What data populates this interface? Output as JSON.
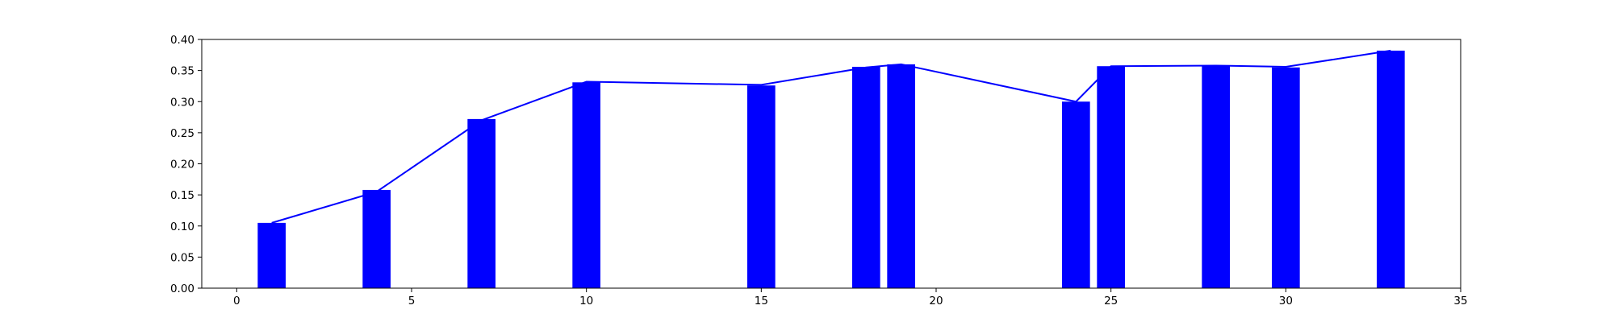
{
  "chart_data": {
    "type": "bar",
    "title": "",
    "xlabel": "",
    "ylabel": "",
    "xlim": [
      -1,
      35
    ],
    "ylim": [
      0,
      0.4
    ],
    "grid": false,
    "x_ticks": [
      0,
      5,
      10,
      15,
      20,
      25,
      30,
      35
    ],
    "x_tick_labels": [
      "0",
      "5",
      "10",
      "15",
      "20",
      "25",
      "30",
      "35"
    ],
    "y_ticks": [
      0,
      0.05,
      0.1,
      0.15,
      0.2,
      0.25,
      0.3,
      0.35,
      0.4
    ],
    "y_tick_labels": [
      "0.00",
      "0.05",
      "0.10",
      "0.15",
      "0.20",
      "0.25",
      "0.30",
      "0.35",
      "0.40"
    ],
    "bar_width": 0.8,
    "bar_color": "#0000ff",
    "line_color": "#0000ff",
    "x": [
      1,
      4,
      7,
      10,
      15,
      18,
      19,
      24,
      25,
      28,
      30,
      33
    ],
    "bars": [
      0.105,
      0.158,
      0.272,
      0.331,
      0.326,
      0.356,
      0.36,
      0.3,
      0.357,
      0.358,
      0.355,
      0.382
    ],
    "line": [
      0.105,
      0.155,
      0.27,
      0.332,
      0.327,
      0.355,
      0.36,
      0.3,
      0.357,
      0.358,
      0.356,
      0.382
    ]
  }
}
